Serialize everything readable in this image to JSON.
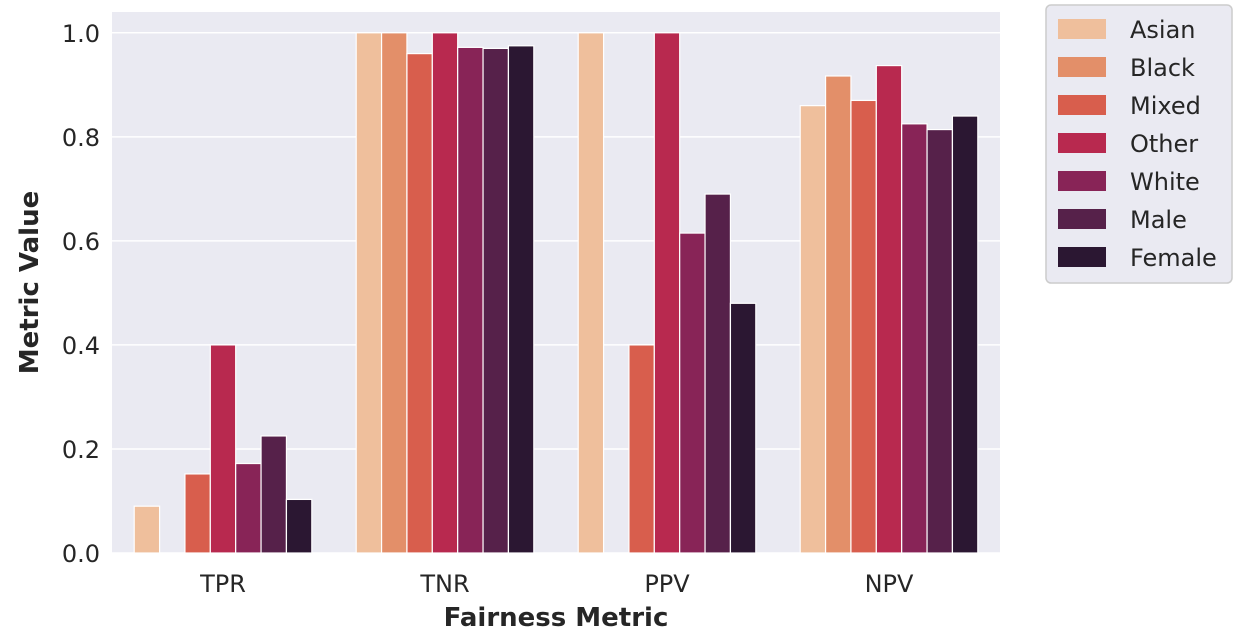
{
  "chart_data": {
    "type": "bar",
    "xlabel": "Fairness Metric",
    "ylabel": "Metric Value",
    "categories": [
      "TPR",
      "TNR",
      "PPV",
      "NPV"
    ],
    "ylim": [
      0,
      1.04
    ],
    "yticks": [
      "0.0",
      "0.2",
      "0.4",
      "0.6",
      "0.8",
      "1.0"
    ],
    "grid": true,
    "legend_position": "outside-top-right",
    "series": [
      {
        "name": "Asian",
        "color": "#efbf9c",
        "values": [
          0.09,
          1.0,
          1.0,
          0.86
        ]
      },
      {
        "name": "Black",
        "color": "#e38f69",
        "values": [
          0.0,
          1.0,
          0.0,
          0.917
        ]
      },
      {
        "name": "Mixed",
        "color": "#d85e4d",
        "values": [
          0.152,
          0.96,
          0.4,
          0.87
        ]
      },
      {
        "name": "Other",
        "color": "#b8294f",
        "values": [
          0.4,
          1.0,
          1.0,
          0.937
        ]
      },
      {
        "name": "White",
        "color": "#882457",
        "values": [
          0.172,
          0.972,
          0.615,
          0.825
        ]
      },
      {
        "name": "Male",
        "color": "#56214a",
        "values": [
          0.225,
          0.97,
          0.69,
          0.814
        ]
      },
      {
        "name": "Female",
        "color": "#2b1732",
        "values": [
          0.103,
          0.975,
          0.48,
          0.84
        ]
      }
    ]
  }
}
